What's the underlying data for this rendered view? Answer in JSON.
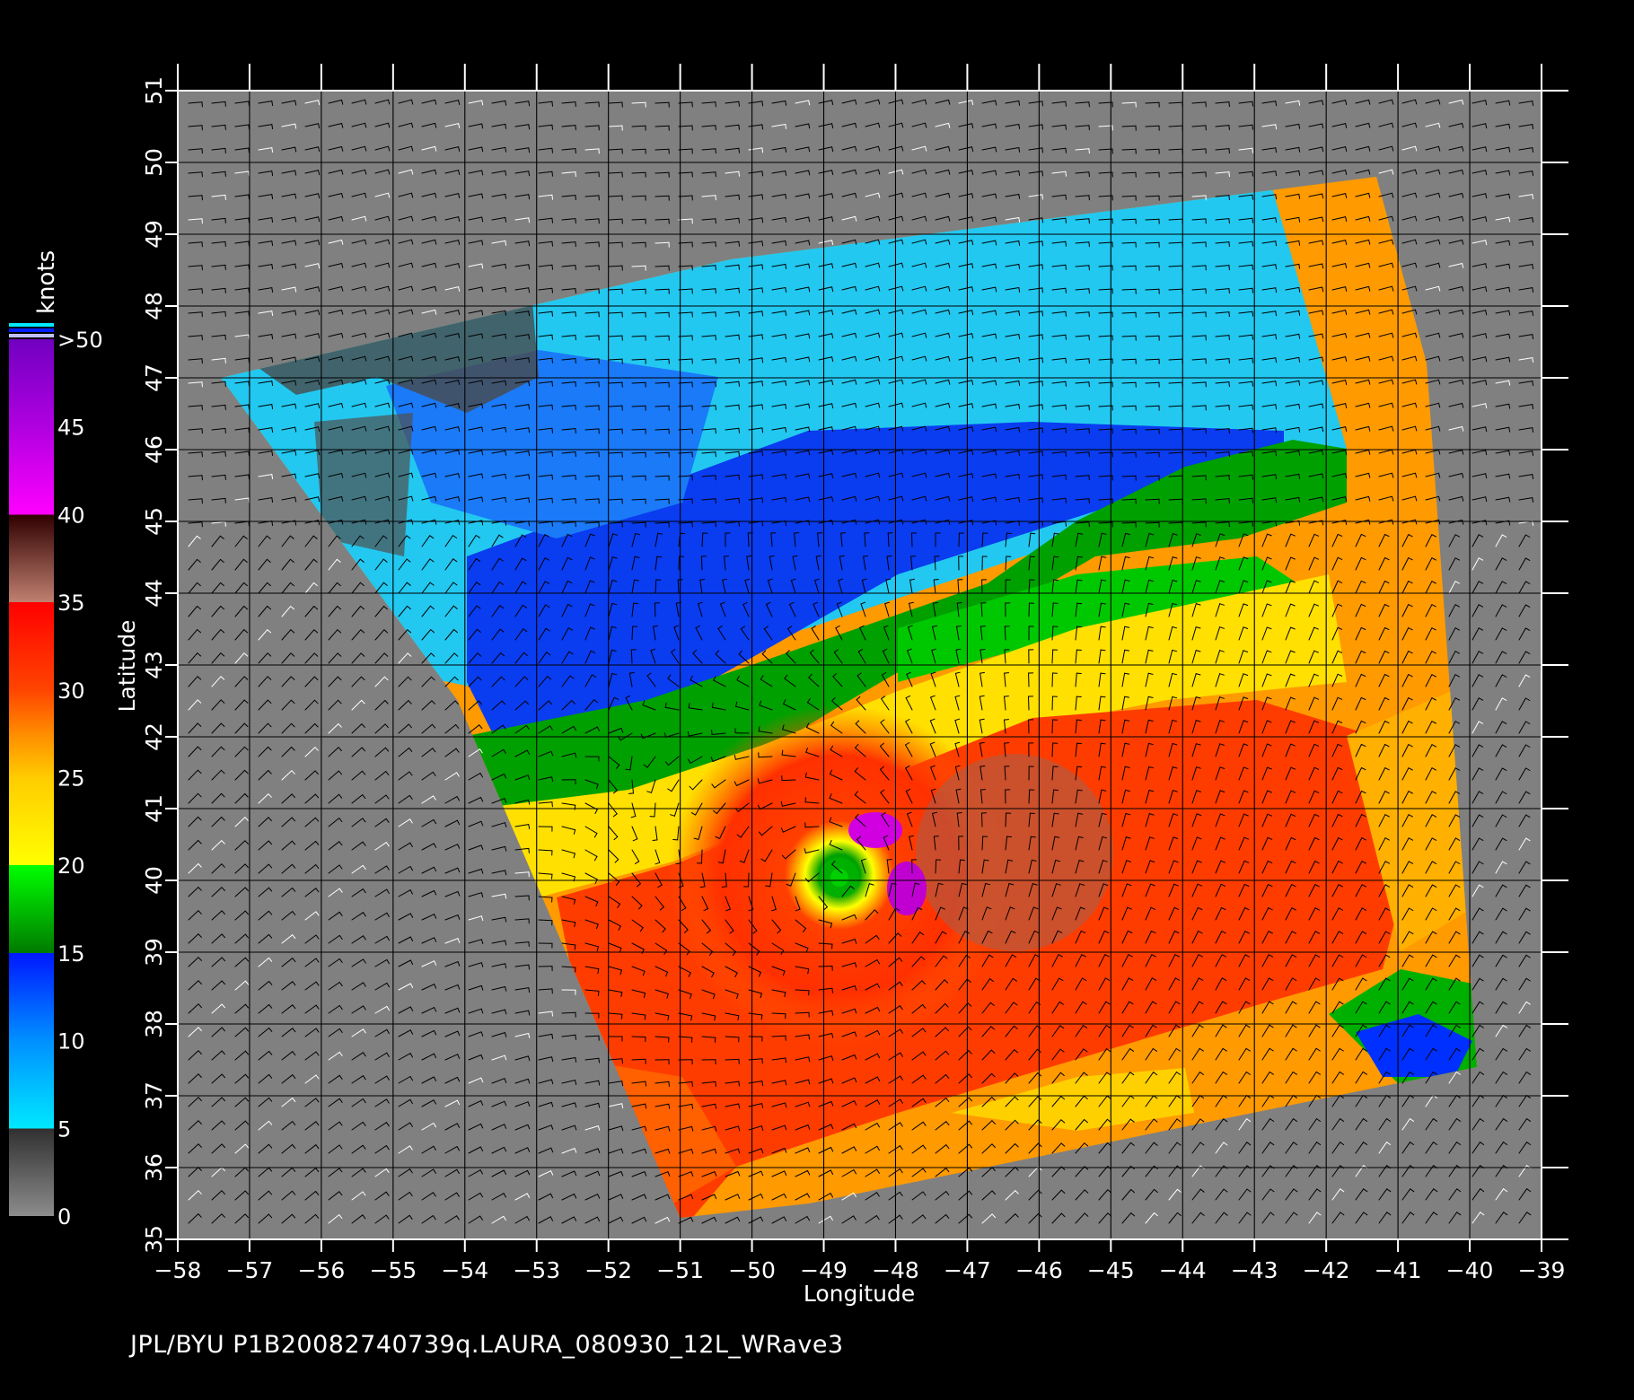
{
  "map": {
    "lon_range": [
      -58,
      -39
    ],
    "lat_range": [
      35,
      51
    ],
    "lon_ticks": [
      "-58",
      "-57",
      "-56",
      "-55",
      "-54",
      "-53",
      "-52",
      "-51",
      "-50",
      "-49",
      "-48",
      "-47",
      "-46",
      "-45",
      "-44",
      "-43",
      "-42",
      "-41",
      "-40",
      "-39"
    ],
    "lat_ticks": [
      "35",
      "36",
      "37",
      "38",
      "39",
      "40",
      "41",
      "42",
      "43",
      "44",
      "45",
      "46",
      "47",
      "48",
      "49",
      "50",
      "51"
    ],
    "xlabel": "Longitude",
    "ylabel": "Latitude",
    "grid": true,
    "storm_center": {
      "lon": -48.9,
      "lat": 39.9
    },
    "background_color": "#808080",
    "grid_color": "#000000"
  },
  "colorbar": {
    "unit": "knots",
    "ticks": [
      "0",
      "5",
      "10",
      "15",
      "20",
      "25",
      "30",
      "35",
      "40",
      "45",
      ">50"
    ],
    "stops": [
      {
        "value": 0,
        "color": "#8c8c8c"
      },
      {
        "value": 5,
        "color": "#303030"
      },
      {
        "value": 5,
        "color": "#00e8ff"
      },
      {
        "value": 10,
        "color": "#0090ff"
      },
      {
        "value": 15,
        "color": "#0018ff"
      },
      {
        "value": 15,
        "color": "#007a00"
      },
      {
        "value": 20,
        "color": "#00ff00"
      },
      {
        "value": 20,
        "color": "#ffff00"
      },
      {
        "value": 25,
        "color": "#ffcc00"
      },
      {
        "value": 27.5,
        "color": "#ff8c00"
      },
      {
        "value": 30,
        "color": "#ff4400"
      },
      {
        "value": 35,
        "color": "#ff0000"
      },
      {
        "value": 35,
        "color": "#c08070"
      },
      {
        "value": 40,
        "color": "#300000"
      },
      {
        "value": 40,
        "color": "#ff00ff"
      },
      {
        "value": 45,
        "color": "#b000e0"
      },
      {
        "value": 50,
        "color": "#7000c0"
      }
    ]
  },
  "footer": "JPL/BYU  P1B20082740739q.LAURA_080930_12L_WRave3"
}
